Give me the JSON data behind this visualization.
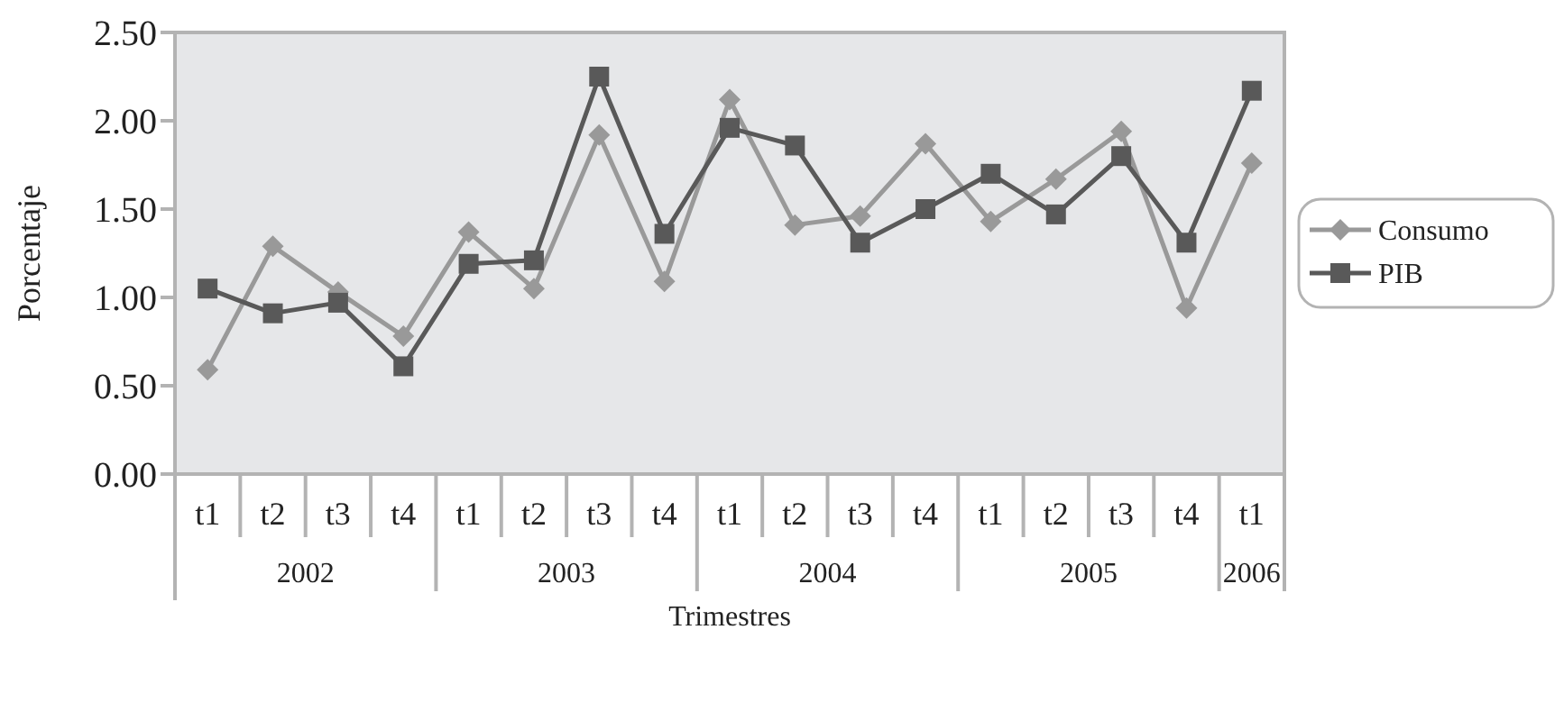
{
  "chart_data": {
    "type": "line",
    "xlabel": "Trimestres",
    "ylabel": "Porcentaje",
    "categories": [
      "t1",
      "t2",
      "t3",
      "t4",
      "t1",
      "t2",
      "t3",
      "t4",
      "t1",
      "t2",
      "t3",
      "t4",
      "t1",
      "t2",
      "t3",
      "t4",
      "t1"
    ],
    "annotations": [
      "2002",
      "2003",
      "2004",
      "2005",
      "2006"
    ],
    "series": [
      {
        "name": "Consumo",
        "color": "#999999",
        "marker": "diamond",
        "values": [
          0.59,
          1.29,
          1.03,
          0.78,
          1.37,
          1.05,
          1.92,
          1.09,
          2.12,
          1.41,
          1.46,
          1.87,
          1.43,
          1.67,
          1.94,
          0.94,
          1.76
        ]
      },
      {
        "name": "PIB",
        "color": "#595959",
        "marker": "square",
        "values": [
          1.05,
          0.91,
          0.97,
          0.61,
          1.19,
          1.21,
          2.25,
          1.36,
          1.96,
          1.86,
          1.31,
          1.5,
          1.7,
          1.47,
          1.8,
          1.31,
          2.17
        ]
      }
    ],
    "ylim": [
      0,
      2.5
    ],
    "yticks": [
      {
        "value": 0,
        "label": "0.00"
      },
      {
        "value": 0.5,
        "label": "0.50"
      },
      {
        "value": 1,
        "label": "1.00"
      },
      {
        "value": 1.5,
        "label": "1.50"
      },
      {
        "value": 2,
        "label": "2.00"
      },
      {
        "value": 2.5,
        "label": "2.50"
      }
    ],
    "grid": false,
    "legend": "right",
    "line_style": "solid"
  }
}
